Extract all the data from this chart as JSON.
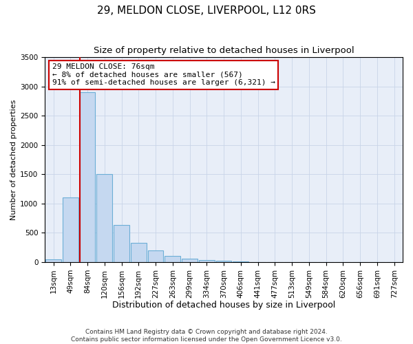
{
  "title": "29, MELDON CLOSE, LIVERPOOL, L12 0RS",
  "subtitle": "Size of property relative to detached houses in Liverpool",
  "xlabel": "Distribution of detached houses by size in Liverpool",
  "ylabel": "Number of detached properties",
  "bar_labels": [
    "13sqm",
    "49sqm",
    "84sqm",
    "120sqm",
    "156sqm",
    "192sqm",
    "227sqm",
    "263sqm",
    "299sqm",
    "334sqm",
    "370sqm",
    "406sqm",
    "441sqm",
    "477sqm",
    "513sqm",
    "549sqm",
    "584sqm",
    "620sqm",
    "656sqm",
    "691sqm",
    "727sqm"
  ],
  "bar_values": [
    50,
    1100,
    2900,
    1500,
    640,
    330,
    200,
    110,
    60,
    40,
    20,
    10,
    5,
    3,
    0,
    0,
    0,
    0,
    0,
    0,
    0
  ],
  "bar_color": "#c5d8f0",
  "bar_edge_color": "#6baed6",
  "bar_edge_width": 0.8,
  "vline_x_index": 2,
  "vline_color": "#cc0000",
  "annotation_title": "29 MELDON CLOSE: 76sqm",
  "annotation_line1": "← 8% of detached houses are smaller (567)",
  "annotation_line2": "91% of semi-detached houses are larger (6,321) →",
  "annotation_box_facecolor": "#ffffff",
  "annotation_box_edgecolor": "#cc0000",
  "ylim": [
    0,
    3500
  ],
  "yticks": [
    0,
    500,
    1000,
    1500,
    2000,
    2500,
    3000,
    3500
  ],
  "footnote1": "Contains HM Land Registry data © Crown copyright and database right 2024.",
  "footnote2": "Contains public sector information licensed under the Open Government Licence v3.0.",
  "title_fontsize": 11,
  "subtitle_fontsize": 9.5,
  "xlabel_fontsize": 9,
  "ylabel_fontsize": 8,
  "tick_fontsize": 7.5,
  "annotation_fontsize": 8,
  "footnote_fontsize": 6.5,
  "background_color": "#e8eef8",
  "grid_color": "#c8d4e8",
  "fig_width": 6.0,
  "fig_height": 5.0
}
